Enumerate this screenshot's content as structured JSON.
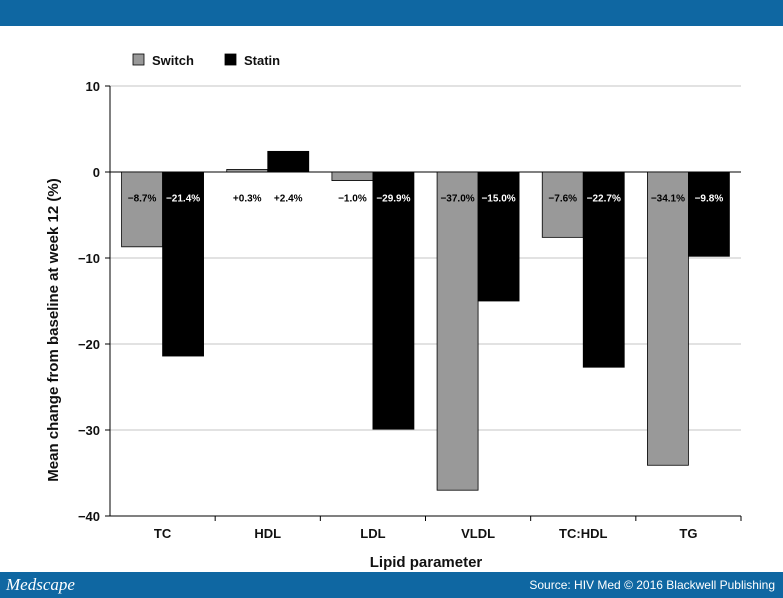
{
  "header": {},
  "footer": {
    "brand": "Medscape",
    "source": "Source: HIV Med © 2016 Blackwell Publishing"
  },
  "colors": {
    "header_bar": "#0f67a2",
    "switch": "#999999",
    "statin": "#000000",
    "gridline": "#b0b0b0"
  },
  "chart_data": {
    "type": "bar",
    "xlabel": "Lipid parameter",
    "ylabel": "Mean change from baseline at week 12 (%)",
    "ylim": [
      -40,
      10
    ],
    "yticks": [
      10,
      0,
      -10,
      -20,
      -30,
      -40
    ],
    "grid": true,
    "legend_position": "top-left",
    "categories": [
      "TC",
      "HDL",
      "LDL",
      "VLDL",
      "TC:HDL",
      "TG"
    ],
    "series": [
      {
        "name": "Switch",
        "color": "#999999",
        "values": [
          -8.7,
          0.3,
          -1.0,
          -37.0,
          -7.6,
          -34.1
        ],
        "labels": [
          "−8.7%",
          "+0.3%",
          "−1.0%",
          "−37.0%",
          "−7.6%",
          "−34.1%"
        ]
      },
      {
        "name": "Statin",
        "color": "#000000",
        "values": [
          -21.4,
          2.4,
          -29.9,
          -15.0,
          -22.7,
          -9.8
        ],
        "labels": [
          "−21.4%",
          "+2.4%",
          "−29.9%",
          "−15.0%",
          "−22.7%",
          "−9.8%"
        ]
      }
    ]
  }
}
